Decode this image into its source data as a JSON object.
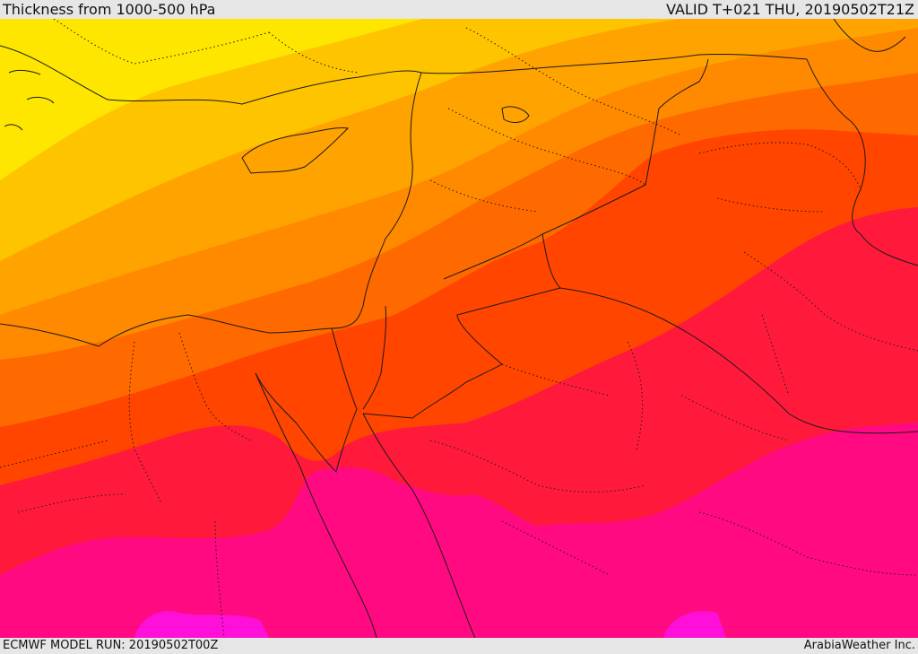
{
  "header": {
    "title": "Thickness from 1000-500 hPa",
    "valid_time": "VALID T+021 THU, 20190502T21Z"
  },
  "footer": {
    "model_run": "ECMWF MODEL RUN: 20190502T00Z",
    "credit": "ArabiaWeather Inc."
  },
  "map": {
    "fill_bands": [
      {
        "name": "band-1",
        "color": "#ffe600"
      },
      {
        "name": "band-2",
        "color": "#ffc400"
      },
      {
        "name": "band-3",
        "color": "#ffa300"
      },
      {
        "name": "band-4",
        "color": "#ff8a00"
      },
      {
        "name": "band-5",
        "color": "#ff6a00"
      },
      {
        "name": "band-6",
        "color": "#ff4500"
      },
      {
        "name": "band-7",
        "color": "#ff1a3c"
      },
      {
        "name": "band-8",
        "color": "#ff0a80"
      },
      {
        "name": "band-9",
        "color": "#ff10d8"
      }
    ],
    "border_color": "#1a1a1a"
  }
}
